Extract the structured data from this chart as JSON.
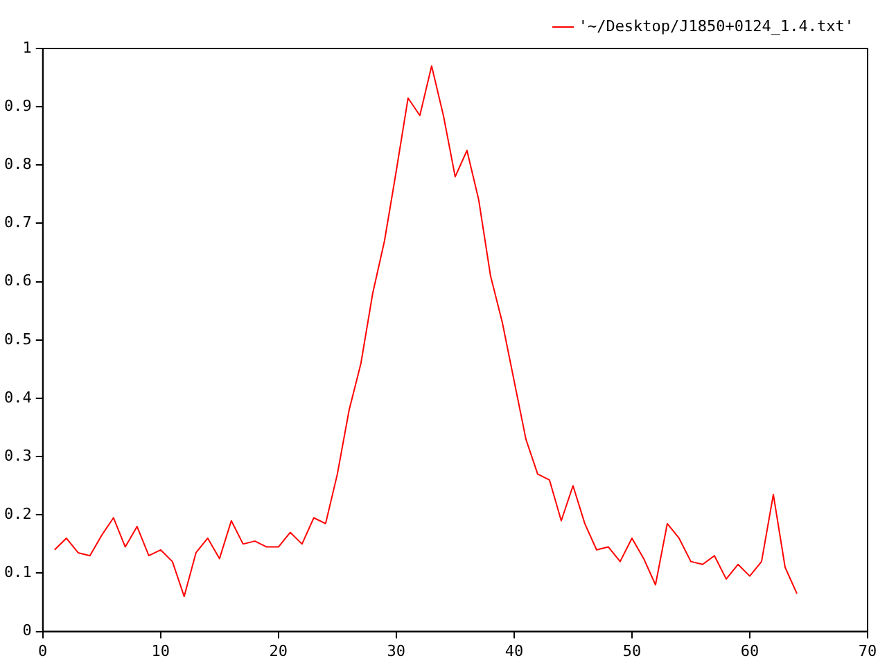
{
  "chart_data": {
    "type": "line",
    "x": [
      1,
      2,
      3,
      4,
      5,
      6,
      7,
      8,
      9,
      10,
      11,
      12,
      13,
      14,
      15,
      16,
      17,
      18,
      19,
      20,
      21,
      22,
      23,
      24,
      25,
      26,
      27,
      28,
      29,
      30,
      31,
      32,
      33,
      34,
      35,
      36,
      37,
      38,
      39,
      40,
      41,
      42,
      43,
      44,
      45,
      46,
      47,
      48,
      49,
      50,
      51,
      52,
      53,
      54,
      55,
      56,
      57,
      58,
      59,
      60,
      61,
      62,
      63,
      64
    ],
    "series": [
      {
        "name": "'~/Desktop/J1850+0124_1.4.txt'",
        "color": "#ff0000",
        "values": [
          0.14,
          0.16,
          0.135,
          0.13,
          0.165,
          0.195,
          0.145,
          0.18,
          0.13,
          0.14,
          0.12,
          0.06,
          0.135,
          0.16,
          0.125,
          0.19,
          0.15,
          0.155,
          0.145,
          0.145,
          0.17,
          0.15,
          0.195,
          0.185,
          0.27,
          0.38,
          0.46,
          0.58,
          0.67,
          0.79,
          0.915,
          0.885,
          0.97,
          0.885,
          0.78,
          0.825,
          0.74,
          0.61,
          0.53,
          0.43,
          0.33,
          0.27,
          0.26,
          0.19,
          0.25,
          0.185,
          0.14,
          0.145,
          0.12,
          0.16,
          0.125,
          0.08,
          0.185,
          0.16,
          0.12,
          0.115,
          0.13,
          0.09,
          0.115,
          0.095,
          0.12,
          0.235,
          0.11,
          0.065
        ]
      }
    ],
    "xlim": [
      0,
      70
    ],
    "xticks": [
      0,
      10,
      20,
      30,
      40,
      50,
      60,
      70
    ],
    "ylim": [
      0,
      1
    ],
    "yticks": [
      0,
      0.1,
      0.2,
      0.3,
      0.4,
      0.5,
      0.6,
      0.7,
      0.8,
      0.9,
      1
    ],
    "grid": false,
    "legend": "top right",
    "marker": "none",
    "line_style": "solid"
  }
}
